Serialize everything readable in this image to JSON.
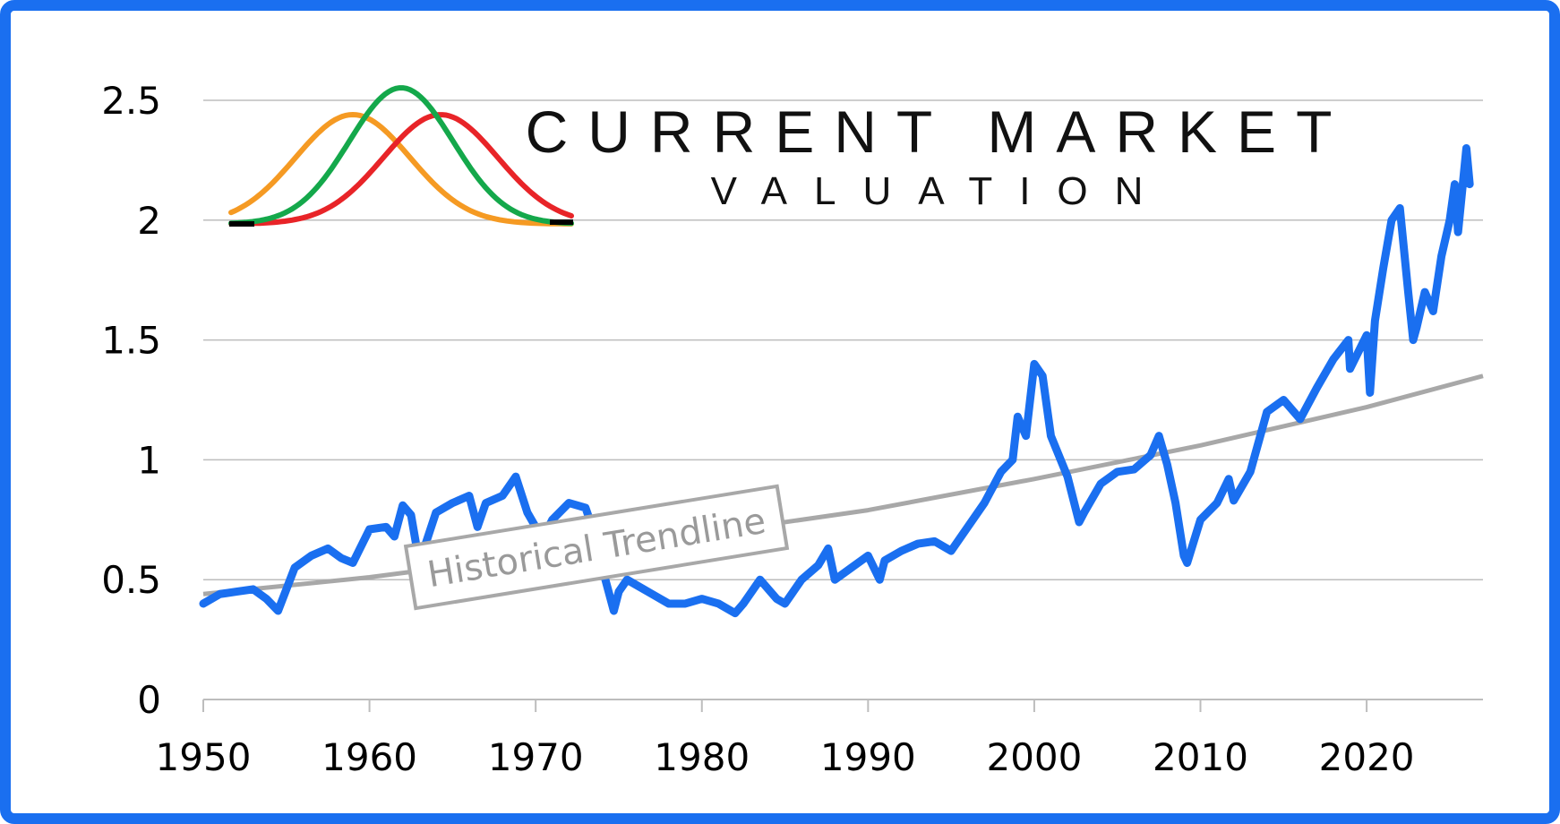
{
  "brand": {
    "line1": "CURRENT MARKET",
    "line2": "VALUATION",
    "logo_colors": [
      "#f59a23",
      "#14a84b",
      "#e82428"
    ]
  },
  "chart_data": {
    "type": "line",
    "title": "",
    "xlabel": "",
    "ylabel": "",
    "xlim": [
      1950,
      2027
    ],
    "ylim": [
      0,
      2.5
    ],
    "xticks": [
      "1950",
      "1960",
      "1970",
      "1980",
      "1990",
      "2000",
      "2010",
      "2020"
    ],
    "yticks": [
      "0",
      "0.5",
      "1",
      "1.5",
      "2",
      "2.5"
    ],
    "grid": "horizontal",
    "series": [
      {
        "color": "#1a6ff0",
        "x": [
          1950,
          1951,
          1952,
          1953,
          1953.8,
          1954.5,
          1955.5,
          1956.5,
          1957.5,
          1958.3,
          1959,
          1960,
          1961,
          1961.5,
          1962,
          1962.5,
          1963,
          1964,
          1965,
          1966,
          1966.5,
          1967,
          1968,
          1968.8,
          1969.5,
          1970,
          1970.5,
          1971,
          1972,
          1973,
          1973.5,
          1974,
          1974.7,
          1975,
          1975.5,
          1976,
          1977,
          1978,
          1979,
          1980,
          1981,
          1982,
          1982.5,
          1983.5,
          1984.5,
          1985,
          1986,
          1987,
          1987.6,
          1988,
          1989,
          1990,
          1990.7,
          1991,
          1992,
          1993,
          1994,
          1995,
          1996,
          1997,
          1998,
          1998.7,
          1999,
          1999.5,
          2000,
          2000.5,
          2001,
          2002,
          2002.7,
          2003,
          2004,
          2005,
          2006,
          2007,
          2007.5,
          2008,
          2008.5,
          2009,
          2009.2,
          2010,
          2011,
          2011.7,
          2012,
          2013,
          2014,
          2015,
          2016,
          2017,
          2018,
          2018.9,
          2019,
          2020,
          2020.2,
          2020.5,
          2021,
          2021.5,
          2022,
          2022.5,
          2022.8,
          2023,
          2023.5,
          2024,
          2024.5,
          2025,
          2025.3,
          2025.5,
          2026,
          2026.2
        ],
        "y": [
          0.4,
          0.44,
          0.45,
          0.46,
          0.42,
          0.37,
          0.55,
          0.6,
          0.63,
          0.59,
          0.57,
          0.71,
          0.72,
          0.68,
          0.81,
          0.77,
          0.57,
          0.78,
          0.82,
          0.85,
          0.72,
          0.82,
          0.85,
          0.93,
          0.78,
          0.72,
          0.68,
          0.75,
          0.82,
          0.8,
          0.7,
          0.55,
          0.37,
          0.45,
          0.5,
          0.48,
          0.44,
          0.4,
          0.4,
          0.42,
          0.4,
          0.36,
          0.4,
          0.5,
          0.42,
          0.4,
          0.5,
          0.56,
          0.63,
          0.5,
          0.55,
          0.6,
          0.5,
          0.58,
          0.62,
          0.65,
          0.66,
          0.62,
          0.72,
          0.82,
          0.95,
          1.0,
          1.18,
          1.1,
          1.4,
          1.35,
          1.1,
          0.93,
          0.74,
          0.78,
          0.9,
          0.95,
          0.96,
          1.02,
          1.1,
          0.98,
          0.82,
          0.6,
          0.57,
          0.75,
          0.82,
          0.92,
          0.83,
          0.95,
          1.2,
          1.25,
          1.17,
          1.3,
          1.42,
          1.5,
          1.38,
          1.52,
          1.28,
          1.58,
          1.8,
          2.0,
          2.05,
          1.7,
          1.5,
          1.55,
          1.7,
          1.62,
          1.85,
          2.0,
          2.15,
          1.95,
          2.3,
          2.15
        ]
      },
      {
        "name": "Historical Trendline",
        "color": "#a8a8a8",
        "x": [
          1950,
          1960,
          1970,
          1980,
          1990,
          2000,
          2010,
          2020,
          2027
        ],
        "y": [
          0.44,
          0.51,
          0.6,
          0.69,
          0.79,
          0.92,
          1.06,
          1.22,
          1.35
        ]
      }
    ],
    "annotations": [
      "Historical Trendline"
    ]
  }
}
